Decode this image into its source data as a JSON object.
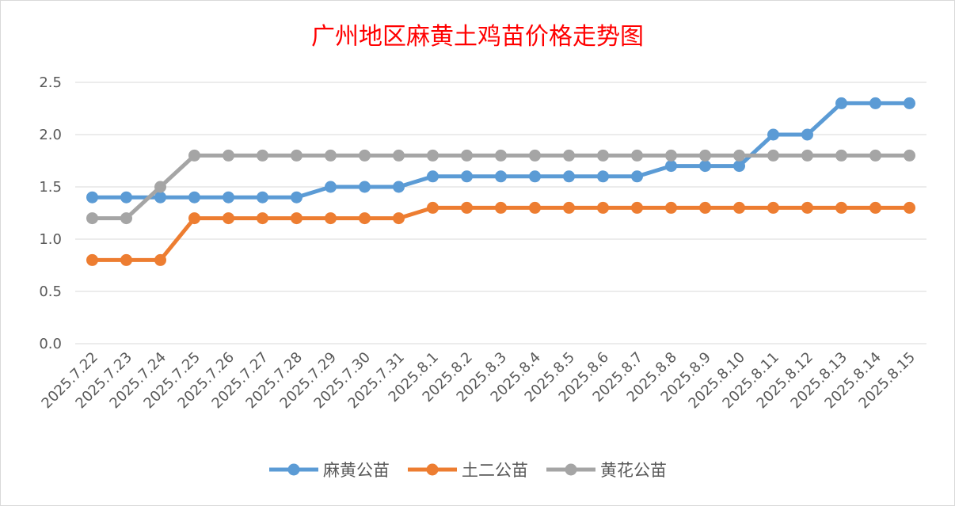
{
  "chart_data": {
    "type": "line",
    "title": "广州地区麻黄土鸡苗价格走势图",
    "xlabel": "",
    "ylabel": "",
    "ylim": [
      0,
      2.5
    ],
    "yticks": [
      "0.0",
      "0.5",
      "1.0",
      "1.5",
      "2.0",
      "2.5"
    ],
    "grid": true,
    "legend_position": "bottom",
    "categories": [
      "2025.7.22",
      "2025.7.23",
      "2025.7.24",
      "2025.7.25",
      "2025.7.26",
      "2025.7.27",
      "2025.7.28",
      "2025.7.29",
      "2025.7.30",
      "2025.7.31",
      "2025.8.1",
      "2025.8.2",
      "2025.8.3",
      "2025.8.4",
      "2025.8.5",
      "2025.8.6",
      "2025.8.7",
      "2025.8.8",
      "2025.8.9",
      "2025.8.10",
      "2025.8.11",
      "2025.8.12",
      "2025.8.13",
      "2025.8.14",
      "2025.8.15"
    ],
    "series": [
      {
        "name": "麻黄公苗",
        "color": "#5b9bd5",
        "values": [
          1.4,
          1.4,
          1.4,
          1.4,
          1.4,
          1.4,
          1.4,
          1.5,
          1.5,
          1.5,
          1.6,
          1.6,
          1.6,
          1.6,
          1.6,
          1.6,
          1.6,
          1.7,
          1.7,
          1.7,
          2.0,
          2.0,
          2.3,
          2.3,
          2.3
        ]
      },
      {
        "name": "土二公苗",
        "color": "#ed7d31",
        "values": [
          0.8,
          0.8,
          0.8,
          1.2,
          1.2,
          1.2,
          1.2,
          1.2,
          1.2,
          1.2,
          1.3,
          1.3,
          1.3,
          1.3,
          1.3,
          1.3,
          1.3,
          1.3,
          1.3,
          1.3,
          1.3,
          1.3,
          1.3,
          1.3,
          1.3
        ]
      },
      {
        "name": "黄花公苗",
        "color": "#a5a5a5",
        "values": [
          1.2,
          1.2,
          1.5,
          1.8,
          1.8,
          1.8,
          1.8,
          1.8,
          1.8,
          1.8,
          1.8,
          1.8,
          1.8,
          1.8,
          1.8,
          1.8,
          1.8,
          1.8,
          1.8,
          1.8,
          1.8,
          1.8,
          1.8,
          1.8,
          1.8
        ]
      }
    ]
  }
}
